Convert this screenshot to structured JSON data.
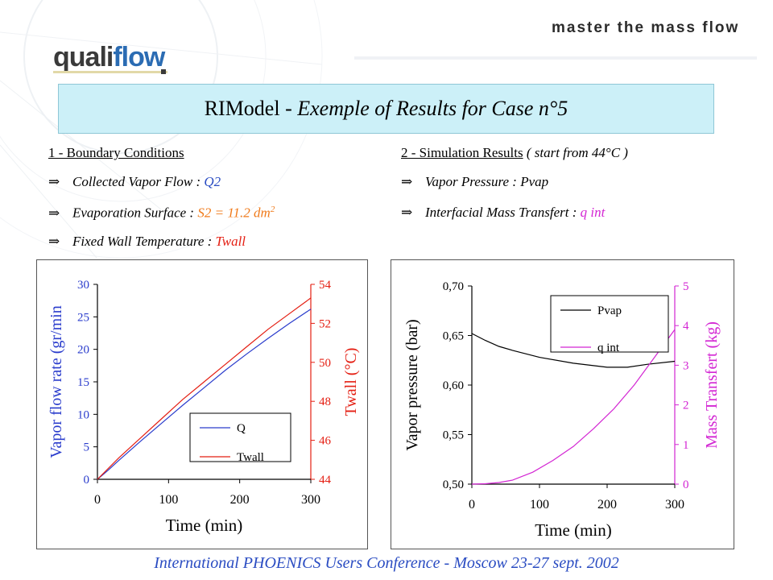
{
  "header": {
    "tagline": "master the mass flow",
    "logo_text": {
      "part1": "quali",
      "part2": "flow"
    }
  },
  "title": {
    "normal": "RIModel - ",
    "italic": "Exemple of Results for Case n°5"
  },
  "left_section": {
    "heading": "1 - Boundary Conditions",
    "items": [
      {
        "label": "Collected Vapor Flow : ",
        "value": "Q2"
      },
      {
        "label": "Evaporation Surface : ",
        "value": "S2 = 11.2 dm",
        "sup": "2"
      },
      {
        "label": "Fixed Wall Temperature : ",
        "value": "Twall"
      }
    ]
  },
  "right_section": {
    "heading": "2 - Simulation Results",
    "heading_note": " ( start from 44°C )",
    "items": [
      {
        "label": "Vapor Pressure : ",
        "value": "Pvap"
      },
      {
        "label": "Interfacial Mass Transfert : ",
        "value": "q int"
      }
    ]
  },
  "arrow_glyph": "⇒",
  "chart_data": [
    {
      "type": "line",
      "xlabel": "Time (min)",
      "ylabel": "Vapor flow rate (gr/min",
      "y2label": "Twall (°C)",
      "xlim": [
        0,
        300
      ],
      "ylim": [
        0,
        30
      ],
      "y2lim": [
        44,
        54
      ],
      "xticks": [
        "0",
        "100",
        "200",
        "300"
      ],
      "yticks": [
        "0",
        "5",
        "10",
        "15",
        "20",
        "25",
        "30"
      ],
      "y2ticks": [
        "44",
        "46",
        "48",
        "50",
        "52",
        "54"
      ],
      "legend_position": "bottom-right",
      "series": [
        {
          "name": "Q",
          "axis": "left",
          "color": "#2a3ccc",
          "x": [
            0,
            15,
            30,
            60,
            90,
            120,
            150,
            180,
            210,
            240,
            270,
            300
          ],
          "y": [
            0,
            1.4,
            2.9,
            5.8,
            8.6,
            11.4,
            14.1,
            16.8,
            19.3,
            21.7,
            24.0,
            26.2
          ]
        },
        {
          "name": "Twall",
          "axis": "right",
          "color": "#e41e12",
          "x": [
            0,
            15,
            30,
            60,
            90,
            120,
            150,
            180,
            210,
            240,
            270,
            300
          ],
          "y": [
            44.0,
            44.55,
            45.1,
            46.1,
            47.1,
            48.1,
            49.0,
            49.9,
            50.8,
            51.7,
            52.5,
            53.3
          ]
        }
      ]
    },
    {
      "type": "line",
      "xlabel": "Time (min)",
      "ylabel": "Vapor pressure (bar)",
      "y2label": "Mass Transfert (kg)",
      "xlim": [
        0,
        300
      ],
      "ylim": [
        0.5,
        0.7
      ],
      "y2lim": [
        0,
        5
      ],
      "xticks": [
        "0",
        "100",
        "200",
        "300"
      ],
      "yticks": [
        "0,50",
        "0,55",
        "0,60",
        "0,65",
        "0,70"
      ],
      "y2ticks": [
        "0",
        "1",
        "2",
        "3",
        "4",
        "5"
      ],
      "legend_position": "top-right",
      "series": [
        {
          "name": "Pvap",
          "axis": "left",
          "color": "#000000",
          "x": [
            0,
            20,
            40,
            60,
            100,
            150,
            200,
            230,
            260,
            300
          ],
          "y": [
            0.652,
            0.645,
            0.639,
            0.635,
            0.628,
            0.622,
            0.618,
            0.618,
            0.621,
            0.624
          ]
        },
        {
          "name": "q int",
          "axis": "right",
          "color": "#d326d3",
          "x": [
            0,
            20,
            40,
            60,
            90,
            120,
            150,
            180,
            210,
            240,
            270,
            300
          ],
          "y": [
            0,
            0.01,
            0.04,
            0.1,
            0.3,
            0.6,
            0.95,
            1.4,
            1.9,
            2.5,
            3.2,
            3.9
          ]
        }
      ]
    }
  ],
  "footer": "International PHOENICS Users Conference - Moscow 23-27 sept. 2002"
}
